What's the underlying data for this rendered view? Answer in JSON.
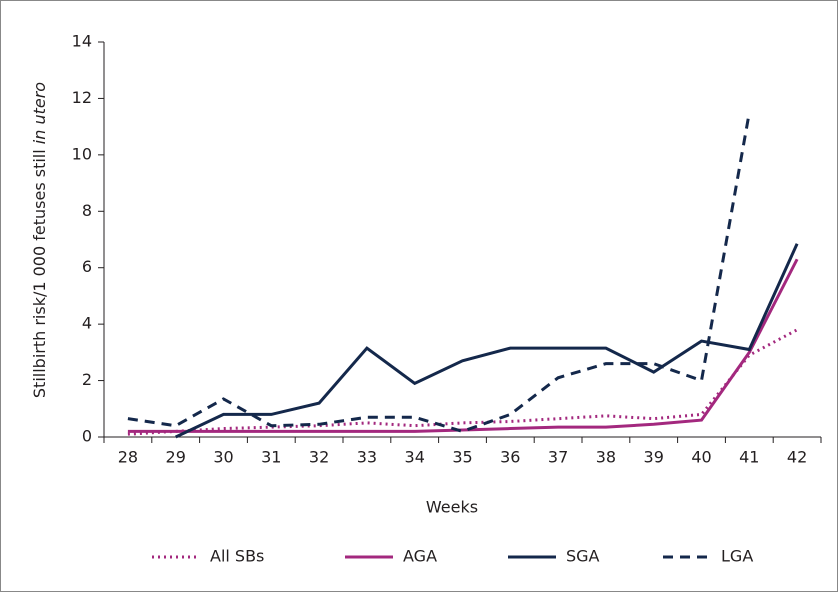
{
  "chart_data": {
    "type": "line",
    "ylabel": [
      "Stillbirth risk/1 000 fetuses still",
      "in utero"
    ],
    "xlabel": "Weeks",
    "categories": [
      "28",
      "29",
      "30",
      "31",
      "32",
      "33",
      "34",
      "35",
      "36",
      "37",
      "38",
      "39",
      "40",
      "41",
      "42"
    ],
    "ylim": [
      0,
      14
    ],
    "yticks": [
      0,
      2,
      4,
      6,
      8,
      10,
      12,
      14
    ],
    "series": [
      {
        "name": "All SBs",
        "color": "#a3287e",
        "dash": "dotted",
        "values": [
          0.1,
          0.2,
          0.3,
          0.35,
          0.4,
          0.5,
          0.4,
          0.5,
          0.55,
          0.65,
          0.75,
          0.65,
          0.8,
          2.9,
          3.8
        ]
      },
      {
        "name": "AGA",
        "color": "#a3287e",
        "dash": "solid",
        "values": [
          0.2,
          0.2,
          0.2,
          0.2,
          0.2,
          0.2,
          0.2,
          0.25,
          0.3,
          0.35,
          0.35,
          0.45,
          0.6,
          3.0,
          6.3
        ]
      },
      {
        "name": "SGA",
        "color": "#14284b",
        "dash": "solid",
        "values": [
          null,
          0,
          0.8,
          0.8,
          1.2,
          3.15,
          1.9,
          2.7,
          3.15,
          3.15,
          3.15,
          2.3,
          3.4,
          3.1,
          6.85
        ]
      },
      {
        "name": "LGA",
        "color": "#14284b",
        "dash": "dashed",
        "values": [
          0.65,
          0.4,
          1.35,
          0.4,
          0.45,
          0.7,
          0.7,
          0.2,
          0.8,
          2.1,
          2.6,
          2.6,
          2.0,
          11.5,
          null
        ]
      }
    ]
  }
}
